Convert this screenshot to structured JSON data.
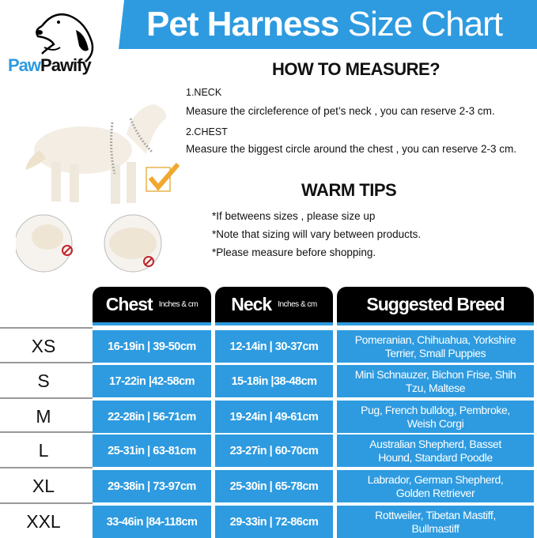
{
  "header": {
    "title_bold": "Pet Harness",
    "title_light": "Size Chart",
    "brand_color": "#2e9be0"
  },
  "logo": {
    "part1": "Paw",
    "part2": "Pawify"
  },
  "how_to_measure": {
    "heading": "HOW TO MEASURE?",
    "items": [
      {
        "label": "1.NECK",
        "text": "Measure the circleference of pet’s neck , you can reserve 2-3 cm."
      },
      {
        "label": "2.CHEST",
        "text": "Measure the biggest circle around the chest , you can reserve 2-3 cm."
      }
    ]
  },
  "warm_tips": {
    "heading": "WARM TIPS",
    "items": [
      "*If betweens sizes , please size up",
      "*Note that sizing will vary between products.",
      "*Please measure before shopping."
    ]
  },
  "table": {
    "columns": [
      {
        "label": "Chest",
        "unit": "Inches & cm"
      },
      {
        "label": "Neck",
        "unit": "Inches & cm"
      },
      {
        "label": "Suggested Breed",
        "unit": ""
      }
    ],
    "rows": [
      {
        "size": "XS",
        "chest": "16-19in | 39-50cm",
        "neck": "12-14in | 30-37cm",
        "breed": "Pomeranian, Chihuahua, Yorkshire Terrier, Small Puppies"
      },
      {
        "size": "S",
        "chest": "17-22in |42-58cm",
        "neck": "15-18in |38-48cm",
        "breed": "Mini Schnauzer, Bichon Frise, Shih Tzu, Maltese"
      },
      {
        "size": "M",
        "chest": "22-28in | 56-71cm",
        "neck": "19-24in | 49-61cm",
        "breed": "Pug, French bulldog, Pembroke, Weish Corgi"
      },
      {
        "size": "L",
        "chest": "25-31in | 63-81cm",
        "neck": "23-27in | 60-70cm",
        "breed": "Australian Shepherd, Basset Hound, Standard Poodle"
      },
      {
        "size": "XL",
        "chest": "29-38in | 73-97cm",
        "neck": "25-30in | 65-78cm",
        "breed": "Labrador, German Shepherd, Golden Retriever"
      },
      {
        "size": "XXL",
        "chest": "33-46in |84-118cm",
        "neck": "29-33in | 72-86cm",
        "breed": "Rottweiler, Tibetan Mastiff, Bullmastiff"
      }
    ]
  }
}
